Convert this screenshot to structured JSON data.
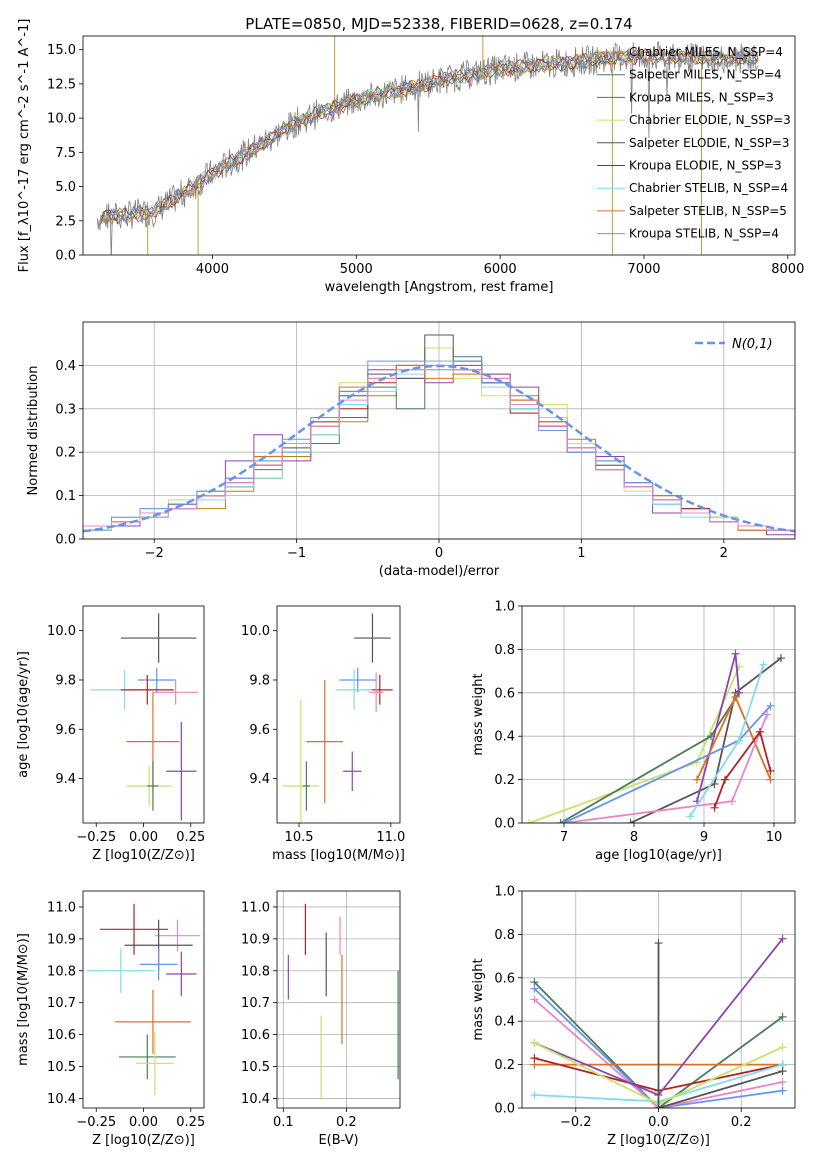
{
  "figure": {
    "title": "PLATE=0850, MJD=52338, FIBERID=0628, z=0.174"
  },
  "colors": [
    "#b8860b",
    "#4a7c59",
    "#8e44ad",
    "#c8e26b",
    "#555555",
    "#b22222",
    "#80deea",
    "#e07020",
    "#6495ed",
    "#e986c4"
  ],
  "chart_data": [
    {
      "id": "spectrum",
      "type": "line",
      "xlabel": "wavelength [Angstrom, rest frame]",
      "ylabel": "Flux [f_λ10^-17 erg cm^-2 s^-1 A^-1]",
      "xlim": [
        3100,
        8050
      ],
      "ylim": [
        0,
        16
      ],
      "xticks": [
        4000,
        5000,
        6000,
        7000,
        8000
      ],
      "yticks": [
        0.0,
        2.5,
        5.0,
        7.5,
        10.0,
        12.5,
        15.0
      ],
      "grid": false,
      "legend": "top-right",
      "observed_spectrum": {
        "x": [
          3200,
          3400,
          3600,
          3800,
          4000,
          4200,
          4400,
          4600,
          4800,
          5000,
          5200,
          5400,
          5600,
          5800,
          6000,
          6200,
          6400,
          6600,
          6800,
          7000,
          7200,
          7400,
          7600,
          7800
        ],
        "y": [
          2.7,
          2.9,
          3.2,
          4.5,
          6.0,
          7.2,
          8.5,
          9.8,
          10.6,
          11.3,
          11.8,
          12.3,
          12.8,
          13.2,
          13.6,
          13.8,
          14.0,
          14.2,
          14.4,
          14.5,
          14.5,
          14.4,
          14.3,
          14.4
        ]
      },
      "series": [
        {
          "name": "Chabrier MILES, N_SSP=4"
        },
        {
          "name": "Salpeter MILES, N_SSP=4"
        },
        {
          "name": "Kroupa MILES, N_SSP=3"
        },
        {
          "name": "Chabrier ELODIE, N_SSP=3"
        },
        {
          "name": "Salpeter ELODIE, N_SSP=3"
        },
        {
          "name": "Kroupa ELODIE, N_SSP=3"
        },
        {
          "name": "Chabrier STELIB, N_SSP=4"
        },
        {
          "name": "Salpeter STELIB, N_SSP=5"
        },
        {
          "name": "Kroupa STELIB, N_SSP=4"
        }
      ]
    },
    {
      "id": "residuals",
      "type": "line",
      "xlabel": "(data-model)/error",
      "ylabel": "Normed distribution",
      "xlim": [
        -2.5,
        2.5
      ],
      "ylim": [
        0,
        0.5
      ],
      "xticks": [
        -2,
        -1,
        0,
        1,
        2
      ],
      "yticks": [
        0.0,
        0.1,
        0.2,
        0.3,
        0.4
      ],
      "grid": true,
      "legend": "top-right",
      "reference": {
        "name": "N(0,1)",
        "mean": 0,
        "sigma": 1
      },
      "histograms": [
        {
          "color_index": 0,
          "values": [
            0.02,
            0.04,
            0.05,
            0.07,
            0.07,
            0.11,
            0.14,
            0.19,
            0.24,
            0.27,
            0.33,
            0.39,
            0.4,
            0.41,
            0.38,
            0.33,
            0.28,
            0.23,
            0.18,
            0.13,
            0.09,
            0.06,
            0.04,
            0.03,
            0.02
          ]
        },
        {
          "color_index": 1,
          "values": [
            0.03,
            0.04,
            0.06,
            0.08,
            0.1,
            0.12,
            0.16,
            0.2,
            0.22,
            0.28,
            0.35,
            0.3,
            0.44,
            0.42,
            0.36,
            0.3,
            0.26,
            0.2,
            0.16,
            0.13,
            0.08,
            0.07,
            0.05,
            0.03,
            0.02
          ]
        },
        {
          "color_index": 2,
          "values": [
            0.02,
            0.03,
            0.06,
            0.07,
            0.11,
            0.18,
            0.24,
            0.18,
            0.27,
            0.34,
            0.39,
            0.37,
            0.36,
            0.4,
            0.38,
            0.35,
            0.26,
            0.22,
            0.19,
            0.12,
            0.06,
            0.07,
            0.04,
            0.02,
            0.01
          ]
        },
        {
          "color_index": 3,
          "values": [
            0.03,
            0.05,
            0.07,
            0.09,
            0.1,
            0.13,
            0.18,
            0.22,
            0.28,
            0.36,
            0.37,
            0.39,
            0.44,
            0.37,
            0.33,
            0.29,
            0.31,
            0.22,
            0.17,
            0.11,
            0.1,
            0.06,
            0.05,
            0.03,
            0.02
          ]
        },
        {
          "color_index": 4,
          "values": [
            0.03,
            0.04,
            0.06,
            0.08,
            0.1,
            0.13,
            0.17,
            0.21,
            0.27,
            0.33,
            0.38,
            0.37,
            0.47,
            0.41,
            0.36,
            0.32,
            0.27,
            0.21,
            0.17,
            0.12,
            0.09,
            0.06,
            0.04,
            0.03,
            0.02
          ]
        },
        {
          "color_index": 5,
          "values": [
            0.02,
            0.04,
            0.05,
            0.07,
            0.1,
            0.12,
            0.17,
            0.2,
            0.26,
            0.3,
            0.36,
            0.4,
            0.41,
            0.39,
            0.36,
            0.29,
            0.26,
            0.21,
            0.16,
            0.12,
            0.1,
            0.07,
            0.04,
            0.03,
            0.02
          ]
        },
        {
          "color_index": 6,
          "values": [
            0.02,
            0.04,
            0.05,
            0.07,
            0.09,
            0.12,
            0.14,
            0.2,
            0.24,
            0.31,
            0.34,
            0.38,
            0.41,
            0.38,
            0.35,
            0.3,
            0.28,
            0.21,
            0.18,
            0.12,
            0.08,
            0.05,
            0.04,
            0.03,
            0.02
          ]
        },
        {
          "color_index": 7,
          "values": [
            0.03,
            0.04,
            0.06,
            0.08,
            0.1,
            0.14,
            0.19,
            0.22,
            0.27,
            0.35,
            0.37,
            0.4,
            0.37,
            0.38,
            0.37,
            0.32,
            0.27,
            0.21,
            0.16,
            0.13,
            0.1,
            0.06,
            0.04,
            0.02,
            0.02
          ]
        },
        {
          "color_index": 8,
          "values": [
            0.03,
            0.05,
            0.07,
            0.08,
            0.11,
            0.14,
            0.18,
            0.23,
            0.28,
            0.34,
            0.41,
            0.41,
            0.39,
            0.41,
            0.36,
            0.31,
            0.25,
            0.2,
            0.18,
            0.13,
            0.09,
            0.06,
            0.04,
            0.03,
            0.02
          ]
        },
        {
          "color_index": 9,
          "values": [
            0.03,
            0.04,
            0.06,
            0.07,
            0.1,
            0.13,
            0.17,
            0.22,
            0.26,
            0.32,
            0.37,
            0.39,
            0.4,
            0.39,
            0.37,
            0.31,
            0.26,
            0.21,
            0.16,
            0.12,
            0.09,
            0.06,
            0.04,
            0.03,
            0.02
          ]
        }
      ]
    },
    {
      "id": "age-vs-z",
      "type": "scatter",
      "xlabel": "Z [log10(Z/Z⊙)]",
      "ylabel": "age [log10(age/yr)]",
      "xlim": [
        -0.32,
        0.32
      ],
      "ylim": [
        9.22,
        10.1
      ],
      "xticks": [
        -0.25,
        0.0,
        0.25
      ],
      "yticks": [
        9.4,
        9.6,
        9.8,
        10.0
      ],
      "grid": false,
      "points": [
        {
          "color_index": 4,
          "x": 0.08,
          "xerr": 0.2,
          "y": 9.97,
          "yerr": 0.1
        },
        {
          "color_index": 8,
          "x": 0.07,
          "xerr": 0.1,
          "y": 9.8,
          "yerr": 0.05
        },
        {
          "color_index": 9,
          "x": 0.17,
          "xerr": 0.12,
          "y": 9.75,
          "yerr": 0.05
        },
        {
          "color_index": 6,
          "x": -0.1,
          "xerr": 0.18,
          "y": 9.76,
          "yerr": 0.08
        },
        {
          "color_index": 5,
          "x": 0.02,
          "xerr": 0.14,
          "y": 9.76,
          "yerr": 0.06
        },
        {
          "color_index": 7,
          "x": 0.05,
          "xerr": 0.14,
          "y": 9.55,
          "yerr": 0.2
        },
        {
          "color_index": 2,
          "x": 0.2,
          "xerr": 0.08,
          "y": 9.43,
          "yerr": 0.2
        },
        {
          "color_index": 3,
          "x": 0.03,
          "xerr": 0.12,
          "y": 9.37,
          "yerr": 0.08
        },
        {
          "color_index": 1,
          "x": 0.05,
          "xerr": 0.03,
          "y": 9.37,
          "yerr": 0.1
        }
      ]
    },
    {
      "id": "age-vs-mass",
      "type": "scatter",
      "xlabel": "mass [log10(M/M⊙)]",
      "ylabel": "",
      "xlim": [
        10.38,
        11.05
      ],
      "ylim": [
        9.22,
        10.1
      ],
      "xticks": [
        10.5,
        11.0
      ],
      "yticks": [
        9.4,
        9.6,
        9.8,
        10.0
      ],
      "grid": false,
      "points": [
        {
          "color_index": 4,
          "x": 10.9,
          "xerr": 0.1,
          "y": 9.97,
          "yerr": 0.1
        },
        {
          "color_index": 8,
          "x": 10.82,
          "xerr": 0.1,
          "y": 9.8,
          "yerr": 0.05
        },
        {
          "color_index": 5,
          "x": 10.94,
          "xerr": 0.07,
          "y": 9.76,
          "yerr": 0.06
        },
        {
          "color_index": 6,
          "x": 10.8,
          "xerr": 0.1,
          "y": 9.76,
          "yerr": 0.08
        },
        {
          "color_index": 9,
          "x": 10.92,
          "xerr": 0.04,
          "y": 9.75,
          "yerr": 0.08
        },
        {
          "color_index": 7,
          "x": 10.64,
          "xerr": 0.1,
          "y": 9.55,
          "yerr": 0.25
        },
        {
          "color_index": 2,
          "x": 10.79,
          "xerr": 0.05,
          "y": 9.43,
          "yerr": 0.08
        },
        {
          "color_index": 3,
          "x": 10.51,
          "xerr": 0.1,
          "y": 9.37,
          "yerr": 0.35
        },
        {
          "color_index": 1,
          "x": 10.54,
          "xerr": 0.02,
          "y": 9.37,
          "yerr": 0.1
        }
      ]
    },
    {
      "id": "mass-weight-vs-age",
      "type": "line",
      "xlabel": "age [log10(age/yr)]",
      "ylabel": "mass weight",
      "xlim": [
        6.4,
        10.3
      ],
      "ylim": [
        0,
        1
      ],
      "xticks": [
        7,
        8,
        9,
        10
      ],
      "yticks": [
        0.0,
        0.2,
        0.4,
        0.6,
        0.8,
        1.0
      ],
      "grid": true,
      "series": [
        {
          "color_index": 3,
          "x": [
            6.5,
            8.9,
            9.5
          ],
          "y": [
            0.0,
            0.28,
            0.72
          ]
        },
        {
          "color_index": 1,
          "x": [
            6.95,
            9.1,
            9.5
          ],
          "y": [
            0.0,
            0.4,
            0.6
          ]
        },
        {
          "color_index": 4,
          "x": [
            7.95,
            9.15,
            9.45,
            10.1
          ],
          "y": [
            0.0,
            0.18,
            0.6,
            0.76
          ]
        },
        {
          "color_index": 2,
          "x": [
            8.9,
            9.45,
            9.5
          ],
          "y": [
            0.1,
            0.78,
            0.6
          ]
        },
        {
          "color_index": 7,
          "x": [
            8.9,
            9.45,
            9.95
          ],
          "y": [
            0.2,
            0.58,
            0.2
          ]
        },
        {
          "color_index": 9,
          "x": [
            7.0,
            9.4,
            9.9
          ],
          "y": [
            0.0,
            0.1,
            0.5
          ]
        },
        {
          "color_index": 8,
          "x": [
            7.0,
            9.5,
            9.95
          ],
          "y": [
            0.0,
            0.38,
            0.54
          ]
        },
        {
          "color_index": 6,
          "x": [
            8.8,
            9.5,
            9.85
          ],
          "y": [
            0.03,
            0.38,
            0.73
          ]
        },
        {
          "color_index": 5,
          "x": [
            9.15,
            9.3,
            9.8,
            9.95
          ],
          "y": [
            0.07,
            0.2,
            0.42,
            0.24
          ]
        }
      ]
    },
    {
      "id": "mass-vs-z",
      "type": "scatter",
      "xlabel": "Z [log10(Z/Z⊙)]",
      "ylabel": "mass [log10(M/M⊙)]",
      "xlim": [
        -0.32,
        0.32
      ],
      "ylim": [
        10.37,
        11.05
      ],
      "xticks": [
        -0.25,
        0.0,
        0.25
      ],
      "yticks": [
        10.4,
        10.5,
        10.6,
        10.7,
        10.8,
        10.9,
        11.0
      ],
      "grid": false,
      "points": [
        {
          "color_index": 5,
          "x": -0.05,
          "xerr": 0.18,
          "y": 10.93,
          "yerr": 0.08
        },
        {
          "color_index": 9,
          "x": 0.18,
          "xerr": 0.12,
          "y": 10.91,
          "yerr": 0.05
        },
        {
          "color_index": 4,
          "x": 0.08,
          "xerr": 0.18,
          "y": 10.88,
          "yerr": 0.08
        },
        {
          "color_index": 8,
          "x": 0.08,
          "xerr": 0.1,
          "y": 10.82,
          "yerr": 0.05
        },
        {
          "color_index": 6,
          "x": -0.12,
          "xerr": 0.18,
          "y": 10.8,
          "yerr": 0.07
        },
        {
          "color_index": 2,
          "x": 0.2,
          "xerr": 0.08,
          "y": 10.79,
          "yerr": 0.07
        },
        {
          "color_index": 7,
          "x": 0.05,
          "xerr": 0.2,
          "y": 10.64,
          "yerr": 0.1
        },
        {
          "color_index": 1,
          "x": 0.02,
          "xerr": 0.15,
          "y": 10.53,
          "yerr": 0.07
        },
        {
          "color_index": 3,
          "x": 0.06,
          "xerr": 0.1,
          "y": 10.51,
          "yerr": 0.1
        }
      ]
    },
    {
      "id": "mass-vs-ebv",
      "type": "scatter",
      "xlabel": "E(B-V)",
      "ylabel": "",
      "xlim": [
        0.09,
        0.285
      ],
      "ylim": [
        10.37,
        11.05
      ],
      "xticks": [
        0.1,
        0.2
      ],
      "yticks": [
        10.4,
        10.5,
        10.6,
        10.7,
        10.8,
        10.9,
        11.0
      ],
      "grid": true,
      "points": [
        {
          "color_index": 5,
          "x": 0.135,
          "y": 10.93,
          "yerr": 0.08
        },
        {
          "color_index": 9,
          "x": 0.19,
          "y": 10.91,
          "yerr": 0.06
        },
        {
          "color_index": 4,
          "x": 0.168,
          "y": 10.82,
          "yerr": 0.1
        },
        {
          "color_index": 2,
          "x": 0.108,
          "y": 10.78,
          "yerr": 0.07
        },
        {
          "color_index": 7,
          "x": 0.193,
          "y": 10.71,
          "yerr": 0.14
        },
        {
          "color_index": 3,
          "x": 0.16,
          "y": 10.53,
          "yerr": 0.13
        },
        {
          "color_index": 1,
          "x": 0.282,
          "y": 10.63,
          "yerr": 0.17
        }
      ]
    },
    {
      "id": "mass-weight-vs-z",
      "type": "line",
      "xlabel": "Z [log10(Z/Z⊙)]",
      "ylabel": "mass weight",
      "xlim": [
        -0.33,
        0.33
      ],
      "ylim": [
        0,
        1
      ],
      "xticks": [
        -0.2,
        0.0,
        0.2
      ],
      "yticks": [
        0.0,
        0.2,
        0.4,
        0.6,
        0.8,
        1.0
      ],
      "grid": true,
      "series": [
        {
          "color_index": 1,
          "x": [
            -0.3,
            0.0,
            0.3
          ],
          "y": [
            0.58,
            0.0,
            0.42
          ]
        },
        {
          "color_index": 8,
          "x": [
            -0.3,
            0.0,
            0.3
          ],
          "y": [
            0.55,
            0.0,
            0.08
          ]
        },
        {
          "color_index": 9,
          "x": [
            -0.3,
            0.0,
            0.3
          ],
          "y": [
            0.5,
            0.0,
            0.12
          ]
        },
        {
          "color_index": 7,
          "x": [
            -0.3,
            0.0,
            0.3
          ],
          "y": [
            0.2,
            0.2,
            0.2
          ]
        },
        {
          "color_index": 5,
          "x": [
            -0.3,
            0.0,
            0.3
          ],
          "y": [
            0.23,
            0.08,
            0.2
          ]
        },
        {
          "color_index": 2,
          "x": [
            -0.3,
            0.0,
            0.3
          ],
          "y": [
            0.3,
            0.06,
            0.78
          ]
        },
        {
          "color_index": 6,
          "x": [
            -0.3,
            0.0,
            0.3
          ],
          "y": [
            0.06,
            0.03,
            0.2
          ]
        },
        {
          "color_index": 3,
          "x": [
            -0.3,
            0.0,
            0.3
          ],
          "y": [
            0.3,
            0.02,
            0.28
          ]
        },
        {
          "color_index": 4,
          "x": [
            0.0,
            0.0,
            0.3
          ],
          "y": [
            0.76,
            0.0,
            0.17
          ]
        }
      ]
    }
  ]
}
